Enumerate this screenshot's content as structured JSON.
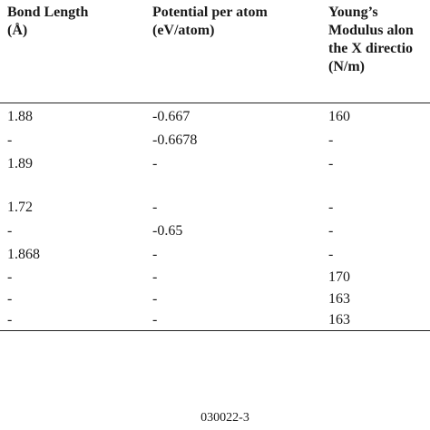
{
  "table": {
    "headers": [
      "Bond Length\n(Å)",
      "Potential per atom\n(eV/atom)",
      "Young’s\nModulus alon\nthe X directio\n(N/m)"
    ],
    "rows": [
      [
        "1.88",
        "-0.667",
        "160"
      ],
      [
        "-",
        "-0.6678",
        "-"
      ],
      [
        "1.89",
        "-",
        "-"
      ],
      [
        "1.72",
        "-",
        "-"
      ],
      [
        "-",
        "-0.65",
        "-"
      ],
      [
        "1.868",
        "-",
        "-"
      ],
      [
        "-",
        "-",
        "170"
      ],
      [
        "-",
        "-",
        "163"
      ],
      [
        "-",
        "-",
        "163"
      ]
    ]
  },
  "footer": {
    "page_id": "030022-3"
  }
}
